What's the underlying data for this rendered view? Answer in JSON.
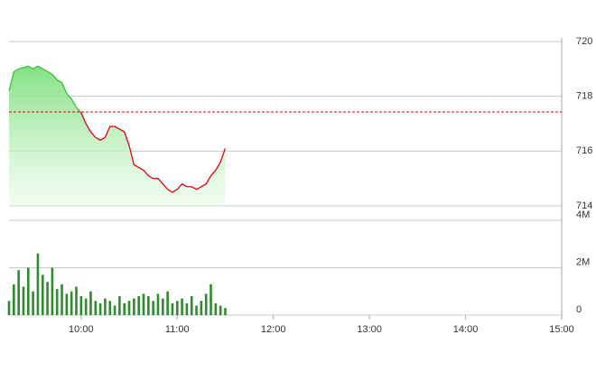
{
  "chart_data": {
    "type": "line",
    "x": [
      555,
      558,
      561,
      564,
      567,
      570,
      573,
      576,
      579,
      582,
      585,
      588,
      591,
      594,
      597,
      600,
      603,
      606,
      609,
      612,
      615,
      618,
      621,
      624,
      627,
      630,
      633,
      636,
      639,
      642,
      645,
      648,
      651,
      654,
      657,
      660,
      663,
      666,
      669,
      672,
      675,
      678,
      681,
      684,
      687,
      690
    ],
    "values": [
      718.2,
      718.9,
      719.0,
      719.05,
      719.1,
      719.0,
      719.1,
      719.0,
      718.9,
      718.8,
      718.6,
      718.5,
      718.1,
      717.9,
      717.6,
      717.4,
      717.0,
      716.7,
      716.5,
      716.4,
      716.5,
      716.9,
      716.9,
      716.8,
      716.7,
      716.2,
      715.5,
      715.4,
      715.3,
      715.1,
      715.0,
      715.0,
      714.8,
      714.6,
      714.5,
      714.6,
      714.8,
      714.7,
      714.7,
      714.6,
      714.7,
      714.8,
      715.1,
      715.3,
      715.6,
      716.1
    ],
    "reference": 717.43,
    "up_color": "#3cbf3c",
    "down_color": "#e8000b",
    "reference_color": "#e8000b",
    "xlim": [
      555,
      900
    ],
    "xticks": [
      {
        "value": 600,
        "label": "10:00"
      },
      {
        "value": 660,
        "label": "11:00"
      },
      {
        "value": 720,
        "label": "12:00"
      },
      {
        "value": 780,
        "label": "13:00"
      },
      {
        "value": 840,
        "label": "14:00"
      },
      {
        "value": 900,
        "label": "15:00"
      }
    ],
    "ylim": [
      714,
      720
    ],
    "yticks": [
      714,
      716,
      718,
      720
    ],
    "volume": {
      "color": "#2e8b2e",
      "values": [
        600000,
        1300000,
        1900000,
        1200000,
        2000000,
        1000000,
        2600000,
        1700000,
        1400000,
        2000000,
        1100000,
        1300000,
        900000,
        1000000,
        1200000,
        800000,
        700000,
        1000000,
        600000,
        500000,
        700000,
        600000,
        400000,
        800000,
        500000,
        600000,
        700000,
        800000,
        900000,
        800000,
        600000,
        900000,
        700000,
        1000000,
        500000,
        600000,
        700000,
        500000,
        800000,
        400000,
        600000,
        900000,
        1300000,
        500000,
        400000,
        300000
      ],
      "ylim": [
        0,
        4000000
      ],
      "yticks": [
        {
          "value": 0,
          "label": "0"
        },
        {
          "value": 2000000,
          "label": "2M"
        },
        {
          "value": 4000000,
          "label": "4M"
        }
      ]
    },
    "grid": true
  }
}
